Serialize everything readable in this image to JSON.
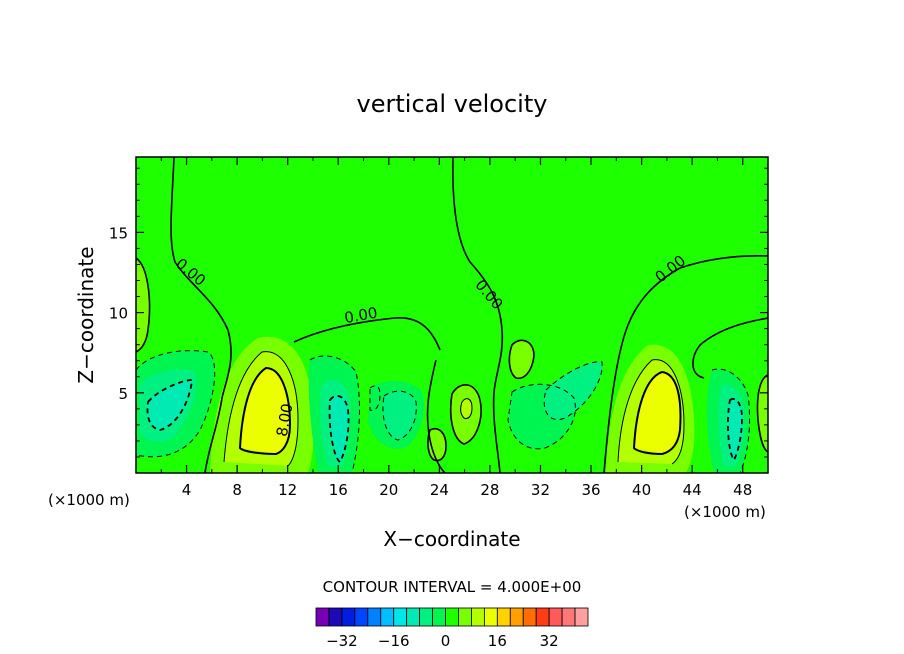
{
  "chart_data": {
    "type": "heatmap",
    "title": "vertical velocity",
    "xlabel": "X−coordinate",
    "ylabel": "Z−coordinate",
    "x_unit_left": "(×1000 m)",
    "x_unit_right": "(×1000 m)",
    "xlim": [
      0,
      50
    ],
    "ylim": [
      0,
      19.7
    ],
    "x_ticks": [
      4,
      8,
      12,
      16,
      20,
      24,
      28,
      32,
      36,
      40,
      44,
      48
    ],
    "y_ticks": [
      5,
      10,
      15
    ],
    "contour_interval_label": "CONTOUR INTERVAL = 4.000E+00",
    "contour_labels": [
      {
        "text": "0.00",
        "x": 4.3,
        "y": 12.5,
        "rotate": 40
      },
      {
        "text": "0.00",
        "x": 17.8,
        "y": 9.8,
        "rotate": -10
      },
      {
        "text": "0.00",
        "x": 27.9,
        "y": 11.1,
        "rotate": 50
      },
      {
        "text": "0.00",
        "x": 42.3,
        "y": 12.7,
        "rotate": -38
      },
      {
        "text": "8.00",
        "x": 11.8,
        "y": 3.3,
        "rotate": -80
      }
    ],
    "colorbar": {
      "colors": [
        "#7800b4",
        "#1e0ab4",
        "#001ede",
        "#0046ff",
        "#0082ff",
        "#00beff",
        "#00e6e6",
        "#00ebb4",
        "#00f082",
        "#00f550",
        "#1eff00",
        "#78ff00",
        "#b4ff00",
        "#ebff00",
        "#ffd200",
        "#ffa000",
        "#ff6e00",
        "#ff3c14",
        "#ff5a5a",
        "#ff7878",
        "#ffa0a0"
      ],
      "tick_labels": [
        "−32",
        "−16",
        "0",
        "16",
        "32"
      ],
      "tick_values": [
        -32,
        -16,
        0,
        16,
        32
      ],
      "range": [
        -40,
        44
      ]
    },
    "fields": {
      "positive": [
        "#78ff00",
        "#b4ff00",
        "#ebff00"
      ],
      "slight_positive": "#78ff00",
      "background": "#1eff00",
      "neg_light": "#00f550",
      "neg_mid": "#00f082",
      "neg_strong": "#00ebb4",
      "neg_core": "#00e6e6"
    }
  }
}
